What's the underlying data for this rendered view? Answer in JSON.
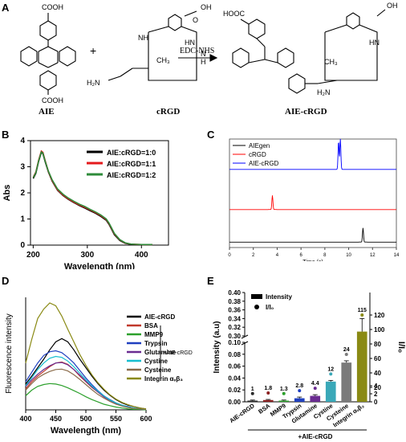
{
  "figure": {
    "panel_labels": {
      "a": "A",
      "b": "B",
      "c": "C",
      "d": "D",
      "e": "E"
    },
    "panel_a": {
      "cooh_top": "COOH",
      "cooh_bottom": "COOH",
      "hooc_product": "HOOC",
      "plus": "+",
      "reagent": "EDC-NHS",
      "aie_label": "AIE",
      "crgd_label": "cRGD",
      "product_label": "AIE-cRGD",
      "oh": "OH",
      "o": "O",
      "nh": "NH",
      "hn": "HN",
      "n": "N",
      "h": "H",
      "ch3": "CH₃",
      "h2n": "H₂N",
      "h2n_full": "H₂N"
    }
  },
  "chart_data": [
    {
      "id": "B",
      "type": "line",
      "xlabel": "Wavelength (nm)",
      "ylabel": "Abs",
      "xlim": [
        195,
        450
      ],
      "ylim": [
        0,
        4
      ],
      "xticks": [
        200,
        300,
        400
      ],
      "yticks": [
        0,
        1,
        2,
        3,
        4
      ],
      "legend_position": "top-right",
      "x": [
        200,
        205,
        210,
        215,
        218,
        222,
        228,
        235,
        245,
        255,
        265,
        275,
        285,
        295,
        305,
        315,
        325,
        335,
        340,
        345,
        350,
        360,
        370,
        380,
        390,
        400,
        410,
        420
      ],
      "series": [
        {
          "name": "AIE:cRGD=1:0",
          "color": "#000000",
          "values": [
            2.55,
            2.75,
            3.2,
            3.55,
            3.5,
            3.2,
            2.8,
            2.45,
            2.1,
            1.9,
            1.75,
            1.63,
            1.52,
            1.42,
            1.32,
            1.22,
            1.1,
            0.95,
            0.8,
            0.6,
            0.4,
            0.18,
            0.07,
            0.03,
            0.02,
            0.02,
            0.02,
            0.02
          ]
        },
        {
          "name": "AIE:cRGD=1:1",
          "color": "#e41a1c",
          "values": [
            2.6,
            2.8,
            3.25,
            3.6,
            3.55,
            3.25,
            2.82,
            2.47,
            2.12,
            1.92,
            1.77,
            1.65,
            1.54,
            1.45,
            1.35,
            1.25,
            1.13,
            0.98,
            0.83,
            0.63,
            0.43,
            0.2,
            0.08,
            0.04,
            0.03,
            0.02,
            0.02,
            0.02
          ]
        },
        {
          "name": "AIE:cRGD=1:2",
          "color": "#2e8b3a",
          "values": [
            2.58,
            2.78,
            3.22,
            3.57,
            3.52,
            3.22,
            2.83,
            2.5,
            2.15,
            1.95,
            1.8,
            1.68,
            1.57,
            1.48,
            1.37,
            1.27,
            1.15,
            1.0,
            0.85,
            0.65,
            0.45,
            0.21,
            0.09,
            0.04,
            0.03,
            0.02,
            0.02,
            0.02
          ]
        }
      ]
    },
    {
      "id": "C",
      "type": "line",
      "xlabel": "Time (s)",
      "ylabel": "",
      "xlim": [
        0,
        14
      ],
      "xticks": [
        0,
        2,
        4,
        6,
        8,
        10,
        12,
        14
      ],
      "legend_position": "top-left",
      "series": [
        {
          "name": "AIEgen",
          "color": "#000000",
          "baseline": 0.05,
          "peaks": [
            {
              "t": 11.2,
              "h": 0.13
            }
          ]
        },
        {
          "name": "cRGD",
          "color": "#ff0000",
          "baseline": 0.35,
          "peaks": [
            {
              "t": 3.6,
              "h": 0.13
            }
          ]
        },
        {
          "name": "AIE-cRGD",
          "color": "#0000ff",
          "baseline": 0.72,
          "peaks": [
            {
              "t": 9.15,
              "h": 0.26
            },
            {
              "t": 9.3,
              "h": 0.28
            }
          ]
        }
      ]
    },
    {
      "id": "D",
      "type": "line",
      "xlabel": "Wavelength (nm)",
      "ylabel": "Fluorescence intensity",
      "xlim": [
        400,
        600
      ],
      "xticks": [
        400,
        450,
        500,
        550,
        600
      ],
      "legend_position": "top-right",
      "bracket_label": "+AIE-cRGD",
      "x": [
        400,
        410,
        420,
        430,
        440,
        450,
        460,
        470,
        480,
        490,
        500,
        510,
        520,
        530,
        540,
        550,
        560,
        570,
        580,
        590,
        600
      ],
      "series": [
        {
          "name": "AIE-cRGD",
          "color": "#000000",
          "values": [
            55,
            72,
            90,
            108,
            128,
            145,
            152,
            145,
            128,
            108,
            90,
            72,
            56,
            42,
            31,
            22,
            15,
            10,
            7,
            4,
            2
          ]
        },
        {
          "name": "BSA",
          "color": "#c0392b",
          "values": [
            45,
            60,
            72,
            82,
            92,
            100,
            102,
            97,
            86,
            72,
            60,
            48,
            38,
            28,
            20,
            14,
            9,
            6,
            4,
            2,
            1
          ]
        },
        {
          "name": "MMP9",
          "color": "#2ca02c",
          "values": [
            30,
            42,
            50,
            54,
            56,
            55,
            52,
            47,
            41,
            35,
            28,
            22,
            17,
            12,
            9,
            6,
            4,
            2,
            1,
            1,
            0
          ]
        },
        {
          "name": "Trypsin",
          "color": "#1f3fbf",
          "values": [
            60,
            80,
            100,
            116,
            124,
            126,
            122,
            112,
            100,
            84,
            68,
            54,
            41,
            30,
            22,
            15,
            10,
            7,
            4,
            2,
            1
          ]
        },
        {
          "name": "Glutamine",
          "color": "#6a2c91",
          "values": [
            50,
            64,
            76,
            86,
            94,
            100,
            101,
            96,
            86,
            74,
            61,
            49,
            38,
            28,
            20,
            14,
            9,
            6,
            4,
            2,
            1
          ]
        },
        {
          "name": "Cystine",
          "color": "#17becf",
          "values": [
            52,
            68,
            86,
            100,
            110,
            114,
            112,
            104,
            92,
            78,
            64,
            51,
            40,
            30,
            21,
            15,
            10,
            6,
            4,
            2,
            1
          ]
        },
        {
          "name": "Cysteine",
          "color": "#8b6b4a",
          "values": [
            42,
            56,
            68,
            76,
            82,
            86,
            87,
            83,
            75,
            65,
            54,
            43,
            33,
            25,
            18,
            12,
            8,
            5,
            3,
            2,
            1
          ]
        },
        {
          "name": "Integrin αᵥβ₃",
          "color": "#8a8a14",
          "values": [
            100,
            150,
            195,
            215,
            228,
            222,
            200,
            172,
            145,
            118,
            95,
            75,
            58,
            44,
            32,
            23,
            16,
            11,
            7,
            4,
            2
          ]
        }
      ]
    },
    {
      "id": "E",
      "type": "bar",
      "ylabel": "Intensity (a.u)",
      "y2label": "I/I₀",
      "group_label": "+AIE-cRGD",
      "legend": [
        "Intensity",
        "I/I₀"
      ],
      "ylim_lower": [
        0,
        0.1
      ],
      "ylim_upper": [
        0.3,
        0.4
      ],
      "yticks": [
        0,
        0.02,
        0.04,
        0.06,
        0.08,
        0.1,
        0.3,
        0.32,
        0.34,
        0.36,
        0.38,
        0.4
      ],
      "y2ticks": [
        0,
        2,
        4,
        20,
        40,
        60,
        80,
        100,
        120
      ],
      "categories": [
        "AIE-cRGD",
        "BSA",
        "MMP9",
        "Trypsin",
        "Glutamine",
        "Cystine",
        "Cysteine",
        "Integrin αᵥβ₃"
      ],
      "values": [
        0.002,
        0.003,
        0.002,
        0.006,
        0.01,
        0.034,
        0.066,
        0.31
      ],
      "errors": [
        0.001,
        0.001,
        0.001,
        0.002,
        0.002,
        0.002,
        0.003,
        0.03
      ],
      "ratio_labels": [
        "1",
        "1.8",
        "1.3",
        "2.8",
        "4.4",
        "12",
        "24",
        "115"
      ],
      "colors": [
        "#2a2a2a",
        "#8b2020",
        "#2ca02c",
        "#1f3fbf",
        "#6a2c91",
        "#3aa8b8",
        "#7a7a7a",
        "#8a8a14"
      ]
    }
  ]
}
